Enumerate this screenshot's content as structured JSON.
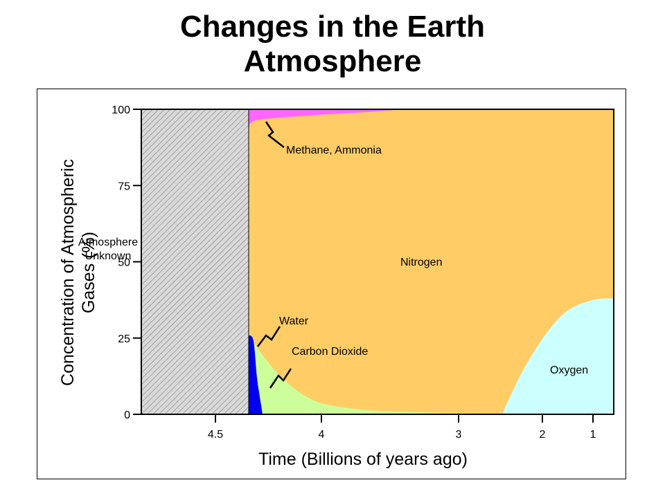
{
  "title": {
    "line1": "Changes in the Earth",
    "line2": "Atmosphere"
  },
  "chart_data": {
    "type": "area",
    "xlabel": "Time (Billions of years ago)",
    "ylabel_line1": "Concentration of Atmospheric",
    "ylabel_line2": "Gases (%)",
    "x_ticks": [
      "4.5",
      "4",
      "3",
      "2",
      "1"
    ],
    "y_ticks": [
      "0",
      "25",
      "50",
      "75",
      "100"
    ],
    "ylim": [
      0,
      100
    ],
    "unknown_region": {
      "label_line1": "Atmosphere",
      "label_line2": "Unknown",
      "x_range": [
        "4.6",
        "4.4"
      ]
    },
    "series": [
      {
        "name": "Water",
        "color": "#0000ee",
        "x": [
          4.4,
          4.38,
          4.35
        ],
        "values": [
          26,
          20,
          0
        ]
      },
      {
        "name": "Carbon Dioxide",
        "color": "#ccff99",
        "x": [
          4.4,
          4.3,
          4.1,
          3.8,
          3.3,
          2.4,
          1.0
        ],
        "values": [
          33,
          20,
          6,
          2,
          1,
          0,
          0
        ]
      },
      {
        "name": "Oxygen",
        "color": "#ccffff",
        "x": [
          2.4,
          2.2,
          1.8,
          1.4,
          1.0
        ],
        "values": [
          0,
          14,
          30,
          36,
          38
        ]
      },
      {
        "name": "Nitrogen",
        "color": "#ffcc66",
        "x": [
          4.4,
          1.0
        ],
        "values": [
          94,
          62
        ]
      },
      {
        "name": "Methane, Ammonia",
        "color": "#ff66ff",
        "x": [
          4.4,
          4.2,
          3.9,
          3.6,
          3.4
        ],
        "values": [
          6,
          3,
          1.5,
          0.5,
          0
        ]
      }
    ],
    "annotations": {
      "methane": "Methane, Ammonia",
      "nitrogen": "Nitrogen",
      "water": "Water",
      "co2": "Carbon Dioxide",
      "oxygen": "Oxygen"
    },
    "colors": {
      "nitrogen": "#ffcc66",
      "methane": "#ff66ff",
      "water": "#0000ee",
      "co2": "#ccff99",
      "oxygen": "#ccffff",
      "unknown_fill": "#d9d9d9",
      "hatch": "#7a7a7a"
    }
  }
}
